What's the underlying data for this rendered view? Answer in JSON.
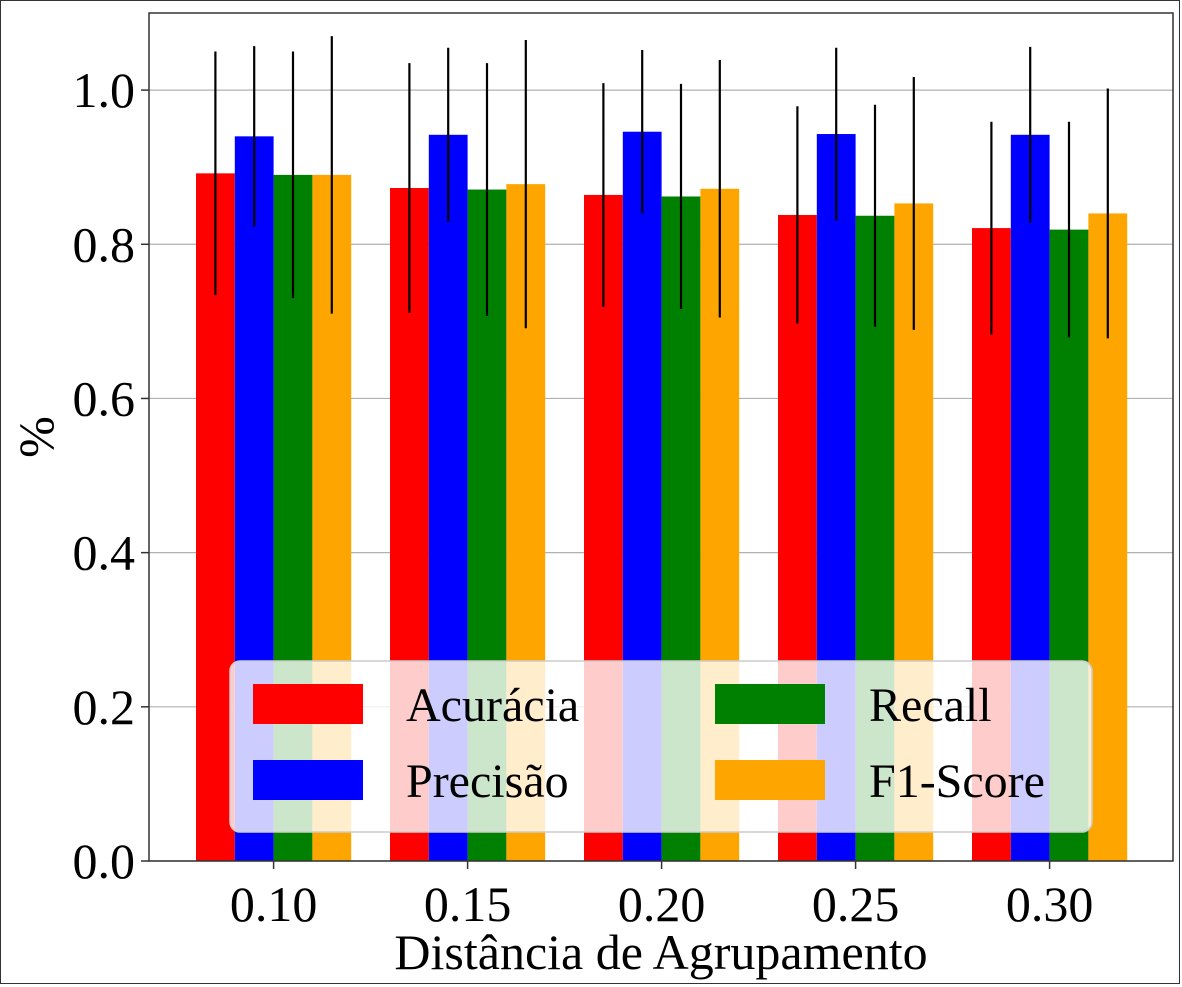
{
  "chart_data": {
    "type": "bar",
    "title": "",
    "xlabel": "Distância de Agrupamento",
    "ylabel": "%",
    "categories": [
      "0.10",
      "0.15",
      "0.20",
      "0.25",
      "0.30"
    ],
    "ylim": [
      0,
      1.1
    ],
    "yticks": [
      "0.0",
      "0.2",
      "0.4",
      "0.6",
      "0.8",
      "1.0"
    ],
    "ytick_values": [
      0.0,
      0.2,
      0.4,
      0.6,
      0.8,
      1.0
    ],
    "grid": "horizontal",
    "legend_position": "lower-center",
    "legend_columns": 2,
    "series": [
      {
        "name": "Acurácia",
        "color": "#ff0000",
        "values": [
          0.892,
          0.873,
          0.864,
          0.838,
          0.821
        ],
        "errors": [
          0.158,
          0.162,
          0.145,
          0.141,
          0.138
        ]
      },
      {
        "name": "Precisão",
        "color": "#0000ff",
        "values": [
          0.94,
          0.942,
          0.946,
          0.943,
          0.942
        ],
        "errors": [
          0.117,
          0.113,
          0.106,
          0.112,
          0.114
        ]
      },
      {
        "name": "Recall",
        "color": "#008000",
        "values": [
          0.89,
          0.871,
          0.862,
          0.837,
          0.819
        ],
        "errors": [
          0.16,
          0.164,
          0.146,
          0.144,
          0.14
        ]
      },
      {
        "name": "F1-Score",
        "color": "#ffa500",
        "values": [
          0.89,
          0.878,
          0.872,
          0.853,
          0.84
        ],
        "errors": [
          0.18,
          0.187,
          0.167,
          0.164,
          0.162
        ]
      }
    ]
  }
}
